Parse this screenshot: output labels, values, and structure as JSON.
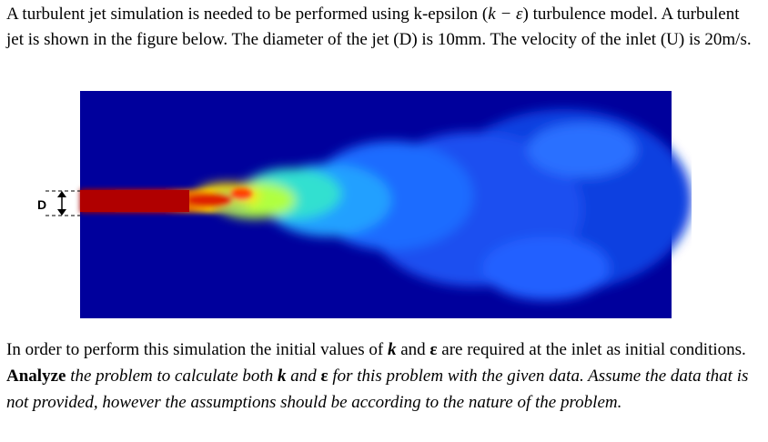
{
  "problem": {
    "intro": [
      "A turbulent jet simulation is needed to be performed using k-epsilon (",
      "k − ε",
      ") turbulence model. A turbulent jet is shown in the figure below. The diameter of the jet (D) is 10mm. The velocity of the inlet (U) is 20m/s."
    ],
    "figure": {
      "label": "D"
    },
    "task": [
      "In order to perform this simulation the initial values of ",
      "k",
      " and ",
      "ε",
      " are required at the inlet as initial conditions. ",
      "Analyze",
      " the problem to calculate both ",
      "k",
      " and ",
      "ε",
      " for this problem with the given data. Assume the data that is not provided, however the assumptions should be according to the nature of the problem."
    ]
  }
}
